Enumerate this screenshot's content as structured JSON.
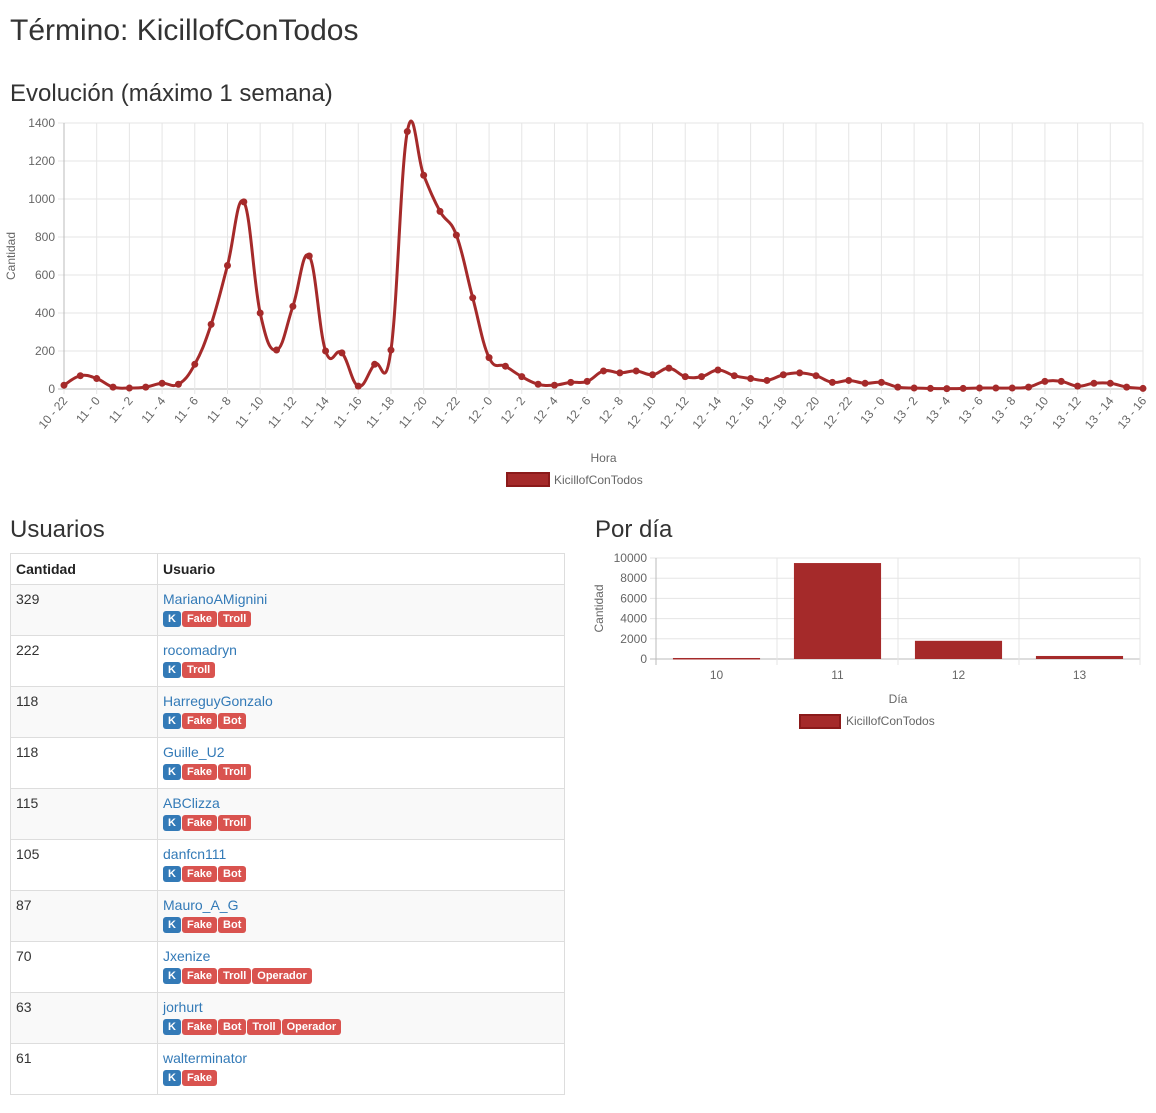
{
  "page_title": "Término: KicillofConTodos",
  "evolution": {
    "title": "Evolución (máximo 1 semana)"
  },
  "users_section": {
    "title": "Usuarios",
    "columns": [
      "Cantidad",
      "Usuario"
    ],
    "rows": [
      {
        "count": "329",
        "user": "MarianoAMignini",
        "badges": [
          "K",
          "Fake",
          "Troll"
        ]
      },
      {
        "count": "222",
        "user": "rocomadryn",
        "badges": [
          "K",
          "Troll"
        ]
      },
      {
        "count": "118",
        "user": "HarreguyGonzalo",
        "badges": [
          "K",
          "Fake",
          "Bot"
        ]
      },
      {
        "count": "118",
        "user": "Guille_U2",
        "badges": [
          "K",
          "Fake",
          "Troll"
        ]
      },
      {
        "count": "115",
        "user": "ABClizza",
        "badges": [
          "K",
          "Fake",
          "Troll"
        ]
      },
      {
        "count": "105",
        "user": "danfcn111",
        "badges": [
          "K",
          "Fake",
          "Bot"
        ]
      },
      {
        "count": "87",
        "user": "Mauro_A_G",
        "badges": [
          "K",
          "Fake",
          "Bot"
        ]
      },
      {
        "count": "70",
        "user": "Jxenize",
        "badges": [
          "K",
          "Fake",
          "Troll",
          "Operador"
        ]
      },
      {
        "count": "63",
        "user": "jorhurt",
        "badges": [
          "K",
          "Fake",
          "Bot",
          "Troll",
          "Operador"
        ]
      },
      {
        "count": "61",
        "user": "walterminator",
        "badges": [
          "K",
          "Fake"
        ]
      }
    ]
  },
  "per_day": {
    "title": "Por día"
  },
  "colors": {
    "series": "#a52a2a",
    "link": "#337ab7",
    "badge_k": "#337ab7",
    "badge_other": "#d9534f"
  },
  "chart_data": [
    {
      "type": "line",
      "xlabel": "Hora",
      "ylabel": "Cantidad",
      "ylim": [
        0,
        1400
      ],
      "yticks": [
        0,
        200,
        400,
        600,
        800,
        1000,
        1200,
        1400
      ],
      "grid": true,
      "legend_placement": "bottom",
      "tick_labels": [
        "10 - 22",
        "11 - 0",
        "11 - 2",
        "11 - 4",
        "11 - 6",
        "11 - 8",
        "11 - 10",
        "11 - 12",
        "11 - 14",
        "11 - 16",
        "11 - 18",
        "11 - 20",
        "11 - 22",
        "12 - 0",
        "12 - 2",
        "12 - 4",
        "12 - 6",
        "12 - 8",
        "12 - 10",
        "12 - 12",
        "12 - 14",
        "12 - 16",
        "12 - 18",
        "12 - 20",
        "12 - 22",
        "13 - 0",
        "13 - 2",
        "13 - 4",
        "13 - 6",
        "13 - 8",
        "13 - 10",
        "13 - 12",
        "13 - 14",
        "13 - 16"
      ],
      "series": [
        {
          "name": "KicillofConTodos",
          "values": [
            20,
            70,
            55,
            10,
            5,
            10,
            30,
            25,
            130,
            340,
            650,
            985,
            400,
            205,
            435,
            700,
            200,
            190,
            15,
            130,
            205,
            1355,
            1125,
            935,
            810,
            480,
            165,
            120,
            65,
            25,
            20,
            35,
            40,
            95,
            85,
            95,
            75,
            110,
            65,
            65,
            100,
            70,
            55,
            45,
            75,
            85,
            70,
            35,
            45,
            30,
            35,
            10,
            5,
            3,
            2,
            3,
            5,
            5,
            5,
            10,
            40,
            40,
            15,
            30,
            30,
            10,
            3
          ]
        }
      ]
    },
    {
      "type": "bar",
      "categories": [
        "10",
        "11",
        "12",
        "13"
      ],
      "values": [
        100,
        9500,
        1800,
        300
      ],
      "xlabel": "Día",
      "ylabel": "Cantidad",
      "ylim": [
        0,
        10000
      ],
      "yticks": [
        0,
        2000,
        4000,
        6000,
        8000,
        10000
      ],
      "grid": true,
      "legend_placement": "bottom",
      "series": [
        {
          "name": "KicillofConTodos"
        }
      ]
    }
  ]
}
